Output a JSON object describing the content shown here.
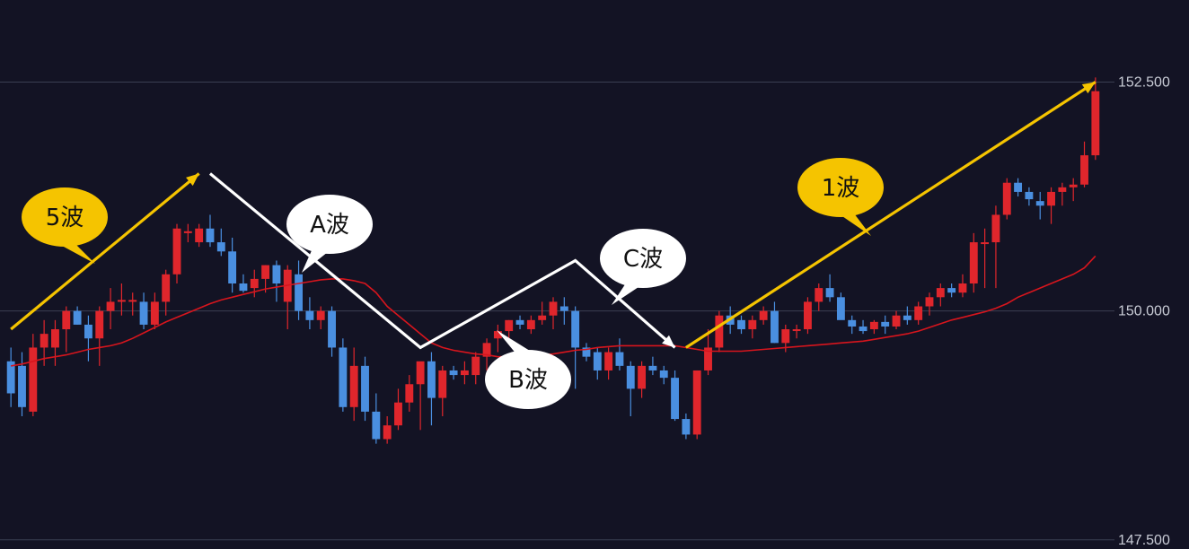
{
  "colors": {
    "background": "#131324",
    "grid": "#3b3f52",
    "bullish": "#e0262c",
    "bearish": "#4a8fe0",
    "ma_line": "#d7151d",
    "trend_yellow": "#f5c400",
    "trend_white": "#ffffff",
    "axis_text": "#c9ccd6"
  },
  "bubbles": [
    {
      "id": "wave-5",
      "label": "5波",
      "style": "yellow"
    },
    {
      "id": "wave-a",
      "label": "A波",
      "style": "white"
    },
    {
      "id": "wave-b",
      "label": "B波",
      "style": "white"
    },
    {
      "id": "wave-c",
      "label": "C波",
      "style": "white"
    },
    {
      "id": "wave-1",
      "label": "1波",
      "style": "yellow"
    }
  ],
  "chart_data": {
    "type": "candlestick",
    "title": "",
    "ylim": [
      147.4,
      153.2
    ],
    "y_ticks": [
      "152.500",
      "150.000",
      "147.500"
    ],
    "y_tick_values": [
      152.5,
      150.0,
      147.5
    ],
    "grid": true,
    "series": [
      {
        "name": "",
        "kind": "candles",
        "ohlc": [
          [
            149.45,
            149.6,
            148.95,
            149.1
          ],
          [
            149.4,
            149.55,
            148.85,
            148.95
          ],
          [
            148.9,
            149.75,
            148.85,
            149.6
          ],
          [
            149.6,
            149.9,
            149.4,
            149.75
          ],
          [
            149.6,
            149.9,
            149.4,
            149.8
          ],
          [
            149.8,
            150.05,
            149.55,
            150.0
          ],
          [
            150.0,
            150.05,
            149.85,
            149.85
          ],
          [
            149.85,
            149.95,
            149.45,
            149.7
          ],
          [
            149.7,
            150.05,
            149.4,
            150.0
          ],
          [
            150.0,
            150.25,
            149.8,
            150.1
          ],
          [
            150.1,
            150.3,
            149.95,
            150.12
          ],
          [
            150.1,
            150.2,
            149.95,
            150.12
          ],
          [
            150.1,
            150.2,
            149.8,
            149.85
          ],
          [
            149.85,
            150.2,
            149.8,
            150.1
          ],
          [
            150.1,
            150.45,
            149.95,
            150.4
          ],
          [
            150.4,
            150.95,
            150.3,
            150.9
          ],
          [
            150.85,
            150.95,
            150.75,
            150.87
          ],
          [
            150.75,
            150.95,
            150.7,
            150.9
          ],
          [
            150.9,
            151.05,
            150.7,
            150.75
          ],
          [
            150.75,
            150.9,
            150.6,
            150.65
          ],
          [
            150.65,
            150.8,
            150.2,
            150.3
          ],
          [
            150.3,
            150.4,
            150.2,
            150.22
          ],
          [
            150.25,
            150.45,
            150.15,
            150.35
          ],
          [
            150.35,
            150.5,
            150.2,
            150.5
          ],
          [
            150.5,
            150.55,
            150.1,
            150.3
          ],
          [
            150.1,
            150.5,
            149.8,
            150.45
          ],
          [
            150.4,
            150.55,
            149.9,
            150.0
          ],
          [
            150.0,
            150.15,
            149.8,
            149.9
          ],
          [
            149.9,
            150.05,
            149.8,
            150.0
          ],
          [
            150.0,
            150.05,
            149.5,
            149.6
          ],
          [
            149.6,
            149.7,
            148.9,
            148.95
          ],
          [
            148.95,
            149.6,
            148.8,
            149.4
          ],
          [
            149.4,
            149.5,
            148.8,
            148.9
          ],
          [
            148.9,
            149.1,
            148.55,
            148.6
          ],
          [
            148.6,
            148.85,
            148.55,
            148.75
          ],
          [
            148.75,
            149.15,
            148.7,
            149.0
          ],
          [
            149.0,
            149.3,
            148.9,
            149.2
          ],
          [
            149.2,
            149.4,
            148.7,
            149.45
          ],
          [
            149.45,
            149.55,
            148.75,
            149.05
          ],
          [
            149.05,
            149.4,
            148.85,
            149.35
          ],
          [
            149.35,
            149.4,
            149.25,
            149.3
          ],
          [
            149.3,
            149.45,
            149.2,
            149.35
          ],
          [
            149.3,
            149.55,
            149.2,
            149.5
          ],
          [
            149.5,
            149.7,
            149.35,
            149.65
          ],
          [
            149.7,
            149.85,
            149.55,
            149.78
          ],
          [
            149.78,
            149.9,
            149.65,
            149.9
          ],
          [
            149.9,
            149.95,
            149.8,
            149.85
          ],
          [
            149.8,
            149.95,
            149.75,
            149.9
          ],
          [
            149.9,
            150.1,
            149.85,
            149.95
          ],
          [
            149.95,
            150.15,
            149.8,
            150.1
          ],
          [
            150.05,
            150.15,
            149.85,
            150.0
          ],
          [
            150.0,
            150.05,
            149.15,
            149.6
          ],
          [
            149.6,
            149.65,
            149.45,
            149.5
          ],
          [
            149.55,
            149.6,
            149.25,
            149.35
          ],
          [
            149.35,
            149.6,
            149.25,
            149.55
          ],
          [
            149.55,
            149.7,
            149.35,
            149.4
          ],
          [
            149.4,
            149.45,
            148.85,
            149.15
          ],
          [
            149.15,
            149.45,
            149.05,
            149.4
          ],
          [
            149.4,
            149.5,
            149.3,
            149.35
          ],
          [
            149.35,
            149.4,
            149.2,
            149.27
          ],
          [
            149.27,
            149.35,
            148.8,
            148.82
          ],
          [
            148.82,
            148.88,
            148.6,
            148.65
          ],
          [
            148.65,
            149.35,
            148.6,
            149.35
          ],
          [
            149.35,
            149.8,
            149.3,
            149.6
          ],
          [
            149.6,
            150.0,
            149.55,
            149.95
          ],
          [
            149.95,
            150.05,
            149.75,
            149.85
          ],
          [
            149.9,
            149.95,
            149.75,
            149.8
          ],
          [
            149.8,
            149.95,
            149.7,
            149.9
          ],
          [
            149.9,
            150.05,
            149.85,
            150.0
          ],
          [
            150.0,
            150.1,
            149.65,
            149.65
          ],
          [
            149.65,
            149.85,
            149.55,
            149.8
          ],
          [
            149.8,
            149.85,
            149.7,
            149.8
          ],
          [
            149.8,
            150.15,
            149.75,
            150.1
          ],
          [
            150.1,
            150.3,
            150.0,
            150.25
          ],
          [
            150.25,
            150.4,
            150.1,
            150.15
          ],
          [
            150.15,
            150.2,
            149.95,
            149.9
          ],
          [
            149.9,
            149.95,
            149.75,
            149.83
          ],
          [
            149.83,
            149.9,
            149.75,
            149.78
          ],
          [
            149.8,
            149.9,
            149.75,
            149.88
          ],
          [
            149.88,
            149.95,
            149.75,
            149.83
          ],
          [
            149.83,
            150.0,
            149.8,
            149.95
          ],
          [
            149.95,
            150.05,
            149.85,
            149.9
          ],
          [
            149.9,
            150.1,
            149.85,
            150.05
          ],
          [
            150.05,
            150.2,
            149.95,
            150.15
          ],
          [
            150.15,
            150.3,
            150.05,
            150.25
          ],
          [
            150.25,
            150.3,
            150.15,
            150.2
          ],
          [
            150.2,
            150.4,
            150.15,
            150.3
          ],
          [
            150.3,
            150.85,
            150.2,
            150.75
          ],
          [
            150.75,
            150.9,
            150.25,
            150.75
          ],
          [
            150.75,
            151.15,
            150.25,
            151.05
          ],
          [
            151.05,
            151.45,
            151.0,
            151.4
          ],
          [
            151.4,
            151.45,
            151.25,
            151.3
          ],
          [
            151.3,
            151.35,
            151.15,
            151.22
          ],
          [
            151.2,
            151.3,
            151.0,
            151.15
          ],
          [
            151.15,
            151.35,
            150.95,
            151.3
          ],
          [
            151.3,
            151.4,
            151.15,
            151.35
          ],
          [
            151.35,
            151.45,
            151.2,
            151.38
          ],
          [
            151.38,
            151.85,
            151.35,
            151.7
          ],
          [
            151.7,
            152.55,
            151.65,
            152.4
          ]
        ]
      },
      {
        "name": "",
        "kind": "moving-average",
        "values": [
          149.4,
          149.42,
          149.45,
          149.48,
          149.5,
          149.52,
          149.55,
          149.58,
          149.6,
          149.62,
          149.65,
          149.7,
          149.76,
          149.82,
          149.88,
          149.93,
          149.98,
          150.03,
          150.08,
          150.12,
          150.15,
          150.18,
          150.21,
          150.24,
          150.26,
          150.28,
          150.3,
          150.32,
          150.34,
          150.35,
          150.35,
          150.33,
          150.3,
          150.2,
          150.05,
          149.95,
          149.85,
          149.75,
          149.65,
          149.6,
          149.57,
          149.55,
          149.53,
          149.52,
          149.5,
          149.5,
          149.5,
          149.51,
          149.52,
          149.53,
          149.55,
          149.57,
          149.58,
          149.6,
          149.61,
          149.62,
          149.62,
          149.62,
          149.62,
          149.62,
          149.62,
          149.6,
          149.58,
          149.56,
          149.56,
          149.56,
          149.56,
          149.57,
          149.58,
          149.59,
          149.6,
          149.61,
          149.62,
          149.63,
          149.64,
          149.65,
          149.66,
          149.67,
          149.69,
          149.71,
          149.73,
          149.75,
          149.78,
          149.82,
          149.86,
          149.9,
          149.93,
          149.96,
          149.99,
          150.03,
          150.08,
          150.15,
          150.2,
          150.25,
          150.3,
          150.35,
          150.4,
          150.47,
          150.6
        ]
      }
    ],
    "annotations": [
      {
        "kind": "arrow",
        "color": "yellow",
        "points": [
          [
            0,
            149.8
          ],
          [
            17,
            151.5
          ]
        ]
      },
      {
        "kind": "polyline-arrow",
        "color": "white",
        "points": [
          [
            18,
            151.5
          ],
          [
            37,
            149.6
          ],
          [
            51,
            150.55
          ],
          [
            60,
            149.6
          ]
        ]
      },
      {
        "kind": "arrow",
        "color": "yellow",
        "points": [
          [
            61,
            149.6
          ],
          [
            98,
            152.5
          ]
        ]
      }
    ]
  }
}
